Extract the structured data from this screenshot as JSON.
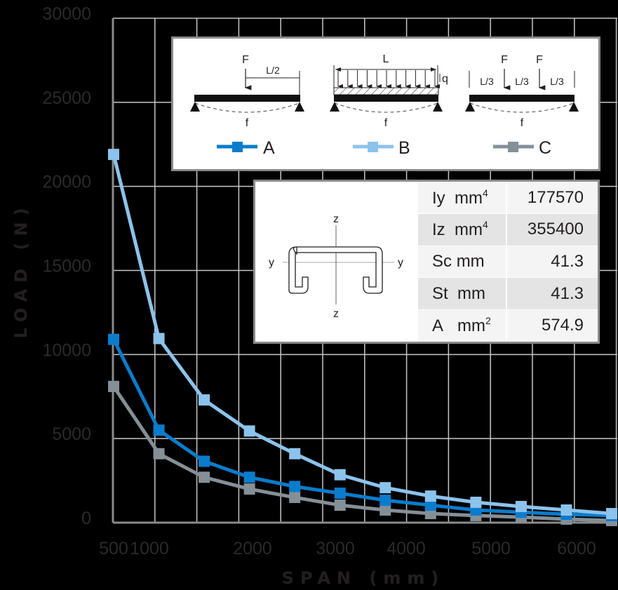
{
  "chart_data": {
    "type": "line",
    "title": "",
    "xlabel": "SPAN (mm)",
    "ylabel": "LOAD (N)",
    "x": [
      500,
      1000,
      1500,
      2000,
      2500,
      3000,
      3500,
      4000,
      4500,
      5000,
      5500,
      6000
    ],
    "x_tick_labels": [
      "500",
      "1000",
      "2000",
      "3000",
      "4000",
      "5000",
      "6000"
    ],
    "y_tick_labels": [
      "0",
      "5000",
      "10000",
      "15000",
      "20000",
      "25000",
      "30000"
    ],
    "ylim": [
      0,
      30000
    ],
    "grid": true,
    "legend_position": "upper right (inset panel)",
    "series": [
      {
        "name": "A",
        "description": "Single point load F at midspan (L/2)",
        "color": "#0a7ccc",
        "values": [
          10900,
          5500,
          3650,
          2700,
          2150,
          1750,
          1330,
          1040,
          750,
          620,
          500,
          420
        ]
      },
      {
        "name": "B",
        "description": "Uniformly distributed load q over span L",
        "color": "#8bc3ec",
        "values": [
          21900,
          10950,
          7300,
          5450,
          4100,
          2850,
          2080,
          1580,
          1210,
          960,
          750,
          540
        ]
      },
      {
        "name": "C",
        "description": "Two point loads F at L/3 spacing",
        "color": "#858f98",
        "values": [
          8100,
          4100,
          2700,
          2000,
          1500,
          1040,
          750,
          540,
          420,
          330,
          210,
          125
        ]
      }
    ]
  },
  "axes": {
    "x_title": "SPAN (mm)",
    "y_title": "LOAD (N)"
  },
  "legend": {
    "items": [
      {
        "key": "A",
        "color": "#0a7ccc",
        "labels": {
          "force": "F",
          "span": "L/2",
          "deflection": "f"
        }
      },
      {
        "key": "B",
        "color": "#8bc3ec",
        "labels": {
          "span": "L",
          "load": "q",
          "deflection": "f"
        }
      },
      {
        "key": "C",
        "color": "#858f98",
        "labels": {
          "force1": "F",
          "force2": "F",
          "seg": "L/3",
          "deflection": "f"
        }
      }
    ]
  },
  "section": {
    "axis_labels": {
      "y": "y",
      "z": "z"
    },
    "properties": [
      {
        "name": "Iy",
        "unit": "mm",
        "exp": "4",
        "value": "177570"
      },
      {
        "name": "Iz",
        "unit": "mm",
        "exp": "4",
        "value": "355400"
      },
      {
        "name": "Sc",
        "unit": "mm",
        "exp": "",
        "value": "41.3"
      },
      {
        "name": "St",
        "unit": "mm",
        "exp": "",
        "value": "41.3"
      },
      {
        "name": "A",
        "unit": "mm",
        "exp": "2",
        "value": "574.9"
      }
    ]
  }
}
